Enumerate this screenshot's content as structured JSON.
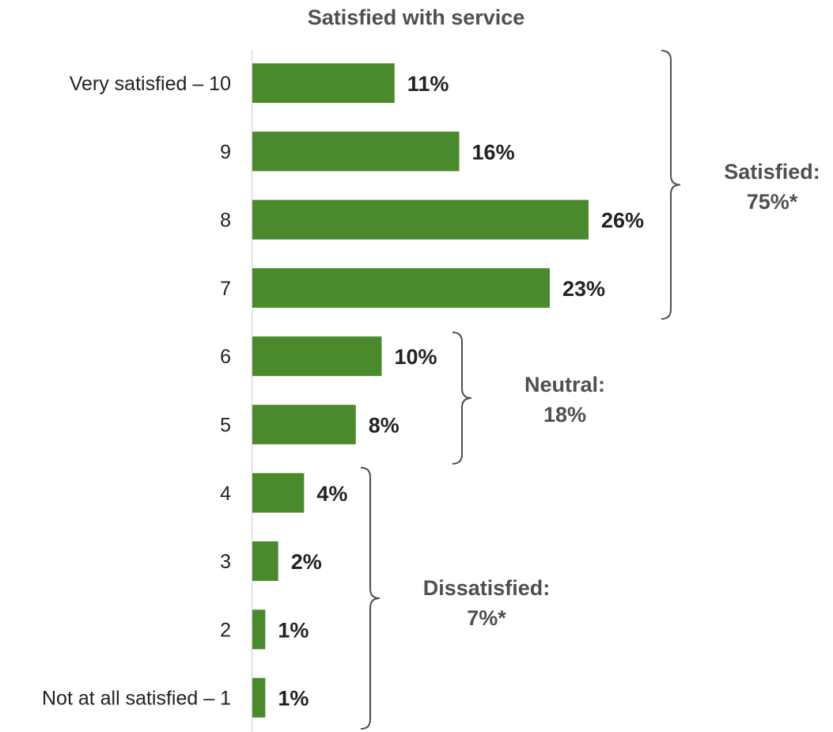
{
  "chart_data": {
    "type": "bar",
    "orientation": "horizontal",
    "title": "Satisfied with service",
    "categories": [
      "Very satisfied – 10",
      "9",
      "8",
      "7",
      "6",
      "5",
      "4",
      "3",
      "2",
      "Not at all satisfied – 1"
    ],
    "values": [
      11,
      16,
      26,
      23,
      10,
      8,
      4,
      2,
      1,
      1
    ],
    "value_labels": [
      "11%",
      "16%",
      "26%",
      "23%",
      "10%",
      "8%",
      "4%",
      "2%",
      "1%",
      "1%"
    ],
    "xlim": [
      0,
      26
    ],
    "grid": false,
    "colors": {
      "bar": "#4a8a2c",
      "bracket": "#4d4f53",
      "group_text": "#4d4f53"
    },
    "groups": [
      {
        "name": "Satisfied",
        "label_line1": "Satisfied:",
        "label_line2": "75%*",
        "from": 0,
        "to": 3
      },
      {
        "name": "Neutral",
        "label_line1": "Neutral:",
        "label_line2": "18%",
        "from": 4,
        "to": 5
      },
      {
        "name": "Dissatisfied",
        "label_line1": "Dissatisfied:",
        "label_line2": "7%*",
        "from": 6,
        "to": 9
      }
    ]
  }
}
